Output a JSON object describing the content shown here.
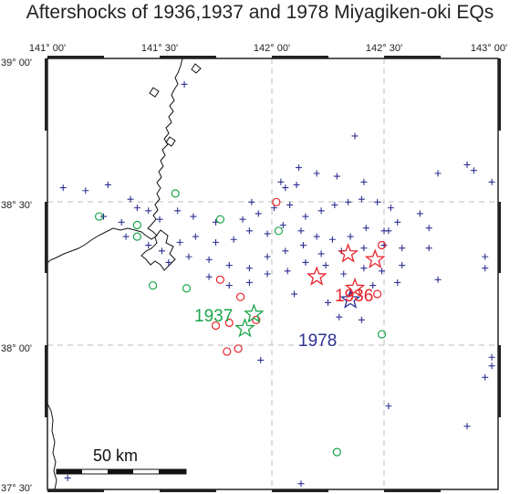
{
  "title": "Aftershocks of 1936,1937 and 1978 Miyagiken-oki EQs",
  "colors": {
    "eq1936": "#e8232b",
    "eq1937": "#1aa54a",
    "eq1978": "#2e3192",
    "frame": "#333333",
    "grid": "#bdbdbd"
  },
  "axes": {
    "lon_ticks": [
      "141° 00'",
      "141° 30'",
      "142° 00'",
      "142° 30'",
      "143° 00'"
    ],
    "lat_ticks": [
      "39° 00'",
      "38° 30'",
      "38° 00'",
      "37° 30'"
    ],
    "lon_range": [
      141.0,
      143.0
    ],
    "lat_range": [
      37.5,
      39.0
    ]
  },
  "labels": {
    "eq1936": "1936",
    "eq1937": "1937",
    "eq1978": "1978"
  },
  "scale_bar": {
    "label": "50 km"
  },
  "mainshocks": [
    {
      "year": "1936",
      "lon": 142.2,
      "lat": 38.24
    },
    {
      "year": "1936",
      "lon": 142.34,
      "lat": 38.32
    },
    {
      "year": "1936",
      "lon": 142.46,
      "lat": 38.3
    },
    {
      "year": "1936",
      "lon": 142.37,
      "lat": 38.2
    },
    {
      "year": "1937",
      "lon": 141.92,
      "lat": 38.11
    },
    {
      "year": "1937",
      "lon": 141.88,
      "lat": 38.06
    },
    {
      "year": "1978",
      "lon": 142.35,
      "lat": 38.16
    }
  ],
  "aftershocks_1936": [
    [
      141.77,
      38.23
    ],
    [
      141.86,
      38.17
    ],
    [
      141.75,
      38.07
    ],
    [
      141.81,
      38.08
    ],
    [
      141.93,
      38.09
    ],
    [
      141.8,
      37.98
    ],
    [
      141.85,
      37.99
    ],
    [
      142.49,
      38.35
    ],
    [
      142.47,
      38.18
    ],
    [
      142.02,
      38.5
    ]
  ],
  "aftershocks_1937": [
    [
      141.23,
      38.45
    ],
    [
      141.57,
      38.53
    ],
    [
      141.4,
      38.42
    ],
    [
      141.4,
      38.38
    ],
    [
      141.47,
      38.21
    ],
    [
      141.62,
      38.2
    ],
    [
      141.77,
      38.44
    ],
    [
      142.03,
      38.4
    ],
    [
      142.49,
      38.04
    ],
    [
      142.29,
      37.63
    ]
  ],
  "aftershocks_1978": [
    [
      141.61,
      38.91
    ],
    [
      141.07,
      38.55
    ],
    [
      141.17,
      38.54
    ],
    [
      141.27,
      38.56
    ],
    [
      141.37,
      38.51
    ],
    [
      141.25,
      38.45
    ],
    [
      141.4,
      38.48
    ],
    [
      141.33,
      38.43
    ],
    [
      141.5,
      38.44
    ],
    [
      141.58,
      38.47
    ],
    [
      141.65,
      38.45
    ],
    [
      141.75,
      38.43
    ],
    [
      141.87,
      38.44
    ],
    [
      141.94,
      38.46
    ],
    [
      142.01,
      38.48
    ],
    [
      142.08,
      38.49
    ],
    [
      142.15,
      38.45
    ],
    [
      142.22,
      38.47
    ],
    [
      142.28,
      38.49
    ],
    [
      142.34,
      38.5
    ],
    [
      142.4,
      38.51
    ],
    [
      142.47,
      38.5
    ],
    [
      142.53,
      38.48
    ],
    [
      142.56,
      38.43
    ],
    [
      142.5,
      38.4
    ],
    [
      142.42,
      38.41
    ],
    [
      142.35,
      38.38
    ],
    [
      142.27,
      38.37
    ],
    [
      142.2,
      38.38
    ],
    [
      142.13,
      38.4
    ],
    [
      142.05,
      38.42
    ],
    [
      141.98,
      38.39
    ],
    [
      141.9,
      38.4
    ],
    [
      141.83,
      38.37
    ],
    [
      141.75,
      38.36
    ],
    [
      141.66,
      38.38
    ],
    [
      141.59,
      38.36
    ],
    [
      141.51,
      38.33
    ],
    [
      141.45,
      38.35
    ],
    [
      141.54,
      38.29
    ],
    [
      141.63,
      38.31
    ],
    [
      141.72,
      38.3
    ],
    [
      141.81,
      38.28
    ],
    [
      141.9,
      38.27
    ],
    [
      141.98,
      38.31
    ],
    [
      142.06,
      38.33
    ],
    [
      142.14,
      38.35
    ],
    [
      142.22,
      38.32
    ],
    [
      142.31,
      38.33
    ],
    [
      142.41,
      38.34
    ],
    [
      142.5,
      38.35
    ],
    [
      142.58,
      38.34
    ],
    [
      142.58,
      38.28
    ],
    [
      142.49,
      38.26
    ],
    [
      142.41,
      38.27
    ],
    [
      142.32,
      38.25
    ],
    [
      142.24,
      38.28
    ],
    [
      142.15,
      38.29
    ],
    [
      142.07,
      38.26
    ],
    [
      141.98,
      38.25
    ],
    [
      141.9,
      38.22
    ],
    [
      141.81,
      38.21
    ],
    [
      141.72,
      38.24
    ],
    [
      142.56,
      38.22
    ],
    [
      142.45,
      38.21
    ],
    [
      142.25,
      38.15
    ],
    [
      142.1,
      38.18
    ],
    [
      142.3,
      38.1
    ],
    [
      142.4,
      38.09
    ],
    [
      141.95,
      37.95
    ],
    [
      142.37,
      38.73
    ],
    [
      142.41,
      38.57
    ],
    [
      142.29,
      38.59
    ],
    [
      142.2,
      38.6
    ],
    [
      142.12,
      38.62
    ],
    [
      142.04,
      38.57
    ],
    [
      142.11,
      38.56
    ],
    [
      142.74,
      38.6
    ],
    [
      142.87,
      38.63
    ],
    [
      142.9,
      38.61
    ],
    [
      142.98,
      38.57
    ],
    [
      142.95,
      38.31
    ],
    [
      142.95,
      38.27
    ],
    [
      142.66,
      38.46
    ],
    [
      142.7,
      38.41
    ],
    [
      142.7,
      38.34
    ],
    [
      142.74,
      38.23
    ],
    [
      142.98,
      37.96
    ],
    [
      142.98,
      37.93
    ],
    [
      142.95,
      37.89
    ],
    [
      142.52,
      37.79
    ],
    [
      142.87,
      37.72
    ],
    [
      142.13,
      37.52
    ],
    [
      141.09,
      37.54
    ],
    [
      142.52,
      38.4
    ],
    [
      142.06,
      38.55
    ],
    [
      141.91,
      38.5
    ],
    [
      141.45,
      38.47
    ],
    [
      141.35,
      38.38
    ]
  ]
}
